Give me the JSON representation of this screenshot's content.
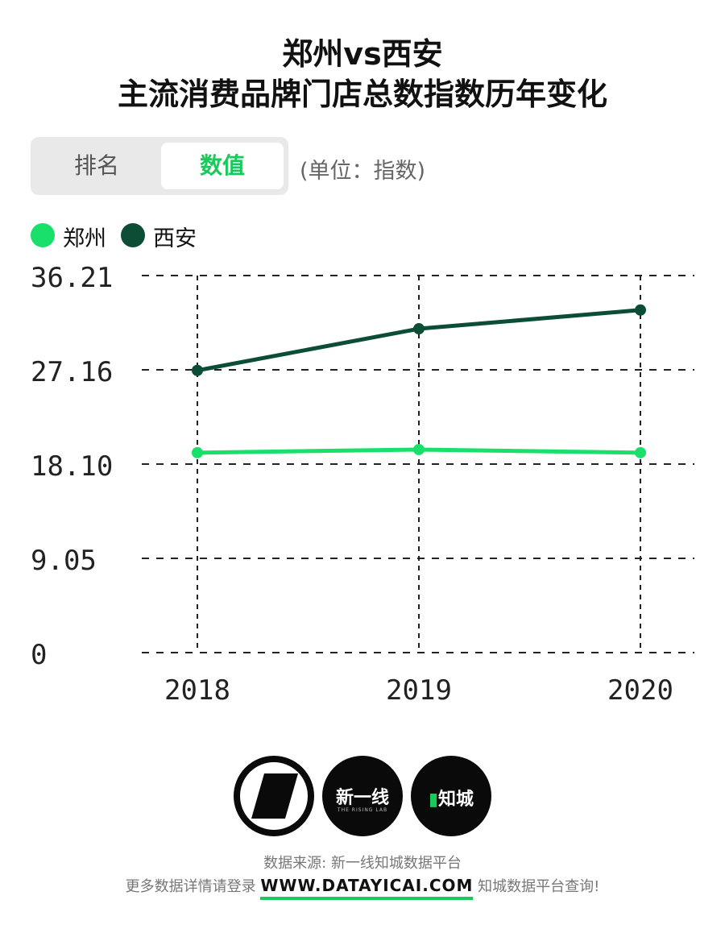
{
  "title": {
    "line1": "郑州vs西安",
    "line2": "主流消费品牌门店总数指数历年变化"
  },
  "toggle": {
    "rank_label": "排名",
    "value_label": "数值"
  },
  "unit_label": "(单位：指数)",
  "colors": {
    "zhengzhou": "#19e06a",
    "xian": "#0c4d35",
    "accent": "#19c95a"
  },
  "chart_data": {
    "type": "line",
    "x": [
      "2018",
      "2019",
      "2020"
    ],
    "y_ticks": [
      "0",
      "9.05",
      "18.10",
      "27.16",
      "36.21"
    ],
    "ylim": [
      0,
      36.21
    ],
    "grid": true,
    "legend_position": "top-left",
    "series": [
      {
        "name": "郑州",
        "values": [
          19.2,
          19.5,
          19.2
        ]
      },
      {
        "name": "西安",
        "values": [
          27.1,
          31.1,
          32.9
        ]
      }
    ]
  },
  "footer": {
    "source": "数据来源: 新一线知城数据平台",
    "more_prefix": "更多数据详情请登录",
    "url": "WWW.DATAYICAI.COM",
    "more_suffix": "知城数据平台查询!",
    "logo2_text": "新一线",
    "logo2_sub": "THE RISING LAB",
    "logo3_text": "知城"
  }
}
